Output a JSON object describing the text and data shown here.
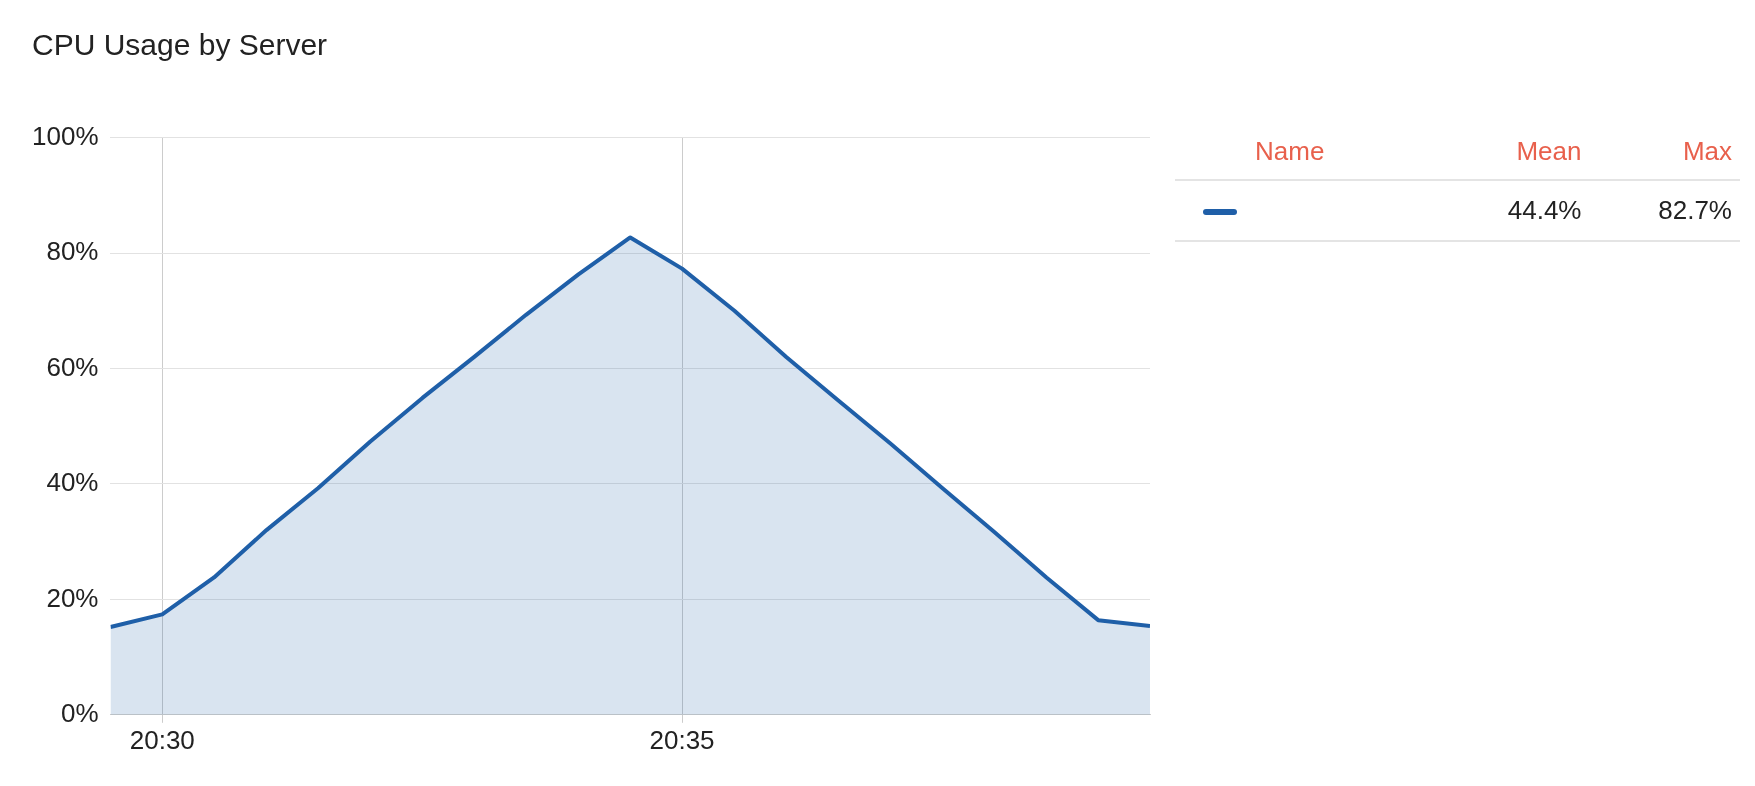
{
  "chart_data": {
    "type": "area",
    "title": "CPU Usage by Server",
    "x": [
      20.4917,
      20.5,
      20.5083,
      20.5167,
      20.525,
      20.5333,
      20.5417,
      20.55,
      20.5583,
      20.5667,
      20.575,
      20.5833,
      20.5917,
      20.6,
      20.6083,
      20.6167,
      20.625,
      20.6333,
      20.6417,
      20.65,
      20.6583
    ],
    "series": [
      {
        "color": "#1f5fa8",
        "values": [
          15.2,
          17.4,
          23.8,
          32,
          39.3,
          47.3,
          54.9,
          62,
          69.3,
          76.3,
          82.7,
          77.3,
          70,
          62,
          54.5,
          47,
          39.3,
          31.7,
          23.8,
          16.4,
          15.4
        ]
      }
    ],
    "xlim": [
      20.4917,
      20.6583
    ],
    "xticks": [
      {
        "value": 20.5,
        "label": "20:30"
      },
      {
        "value": 20.5833,
        "label": "20:35"
      }
    ],
    "ylim": [
      0,
      100
    ],
    "yticks": [
      {
        "value": 0,
        "label": "0%"
      },
      {
        "value": 20,
        "label": "20%"
      },
      {
        "value": 40,
        "label": "40%"
      },
      {
        "value": 60,
        "label": "60%"
      },
      {
        "value": 80,
        "label": "80%"
      },
      {
        "value": 100,
        "label": "100%"
      }
    ],
    "grid": true,
    "marker": "none",
    "line_style": "solid",
    "annotations": [
      "Name",
      "Mean",
      "Max",
      "44.4%",
      "82.7%"
    ]
  }
}
